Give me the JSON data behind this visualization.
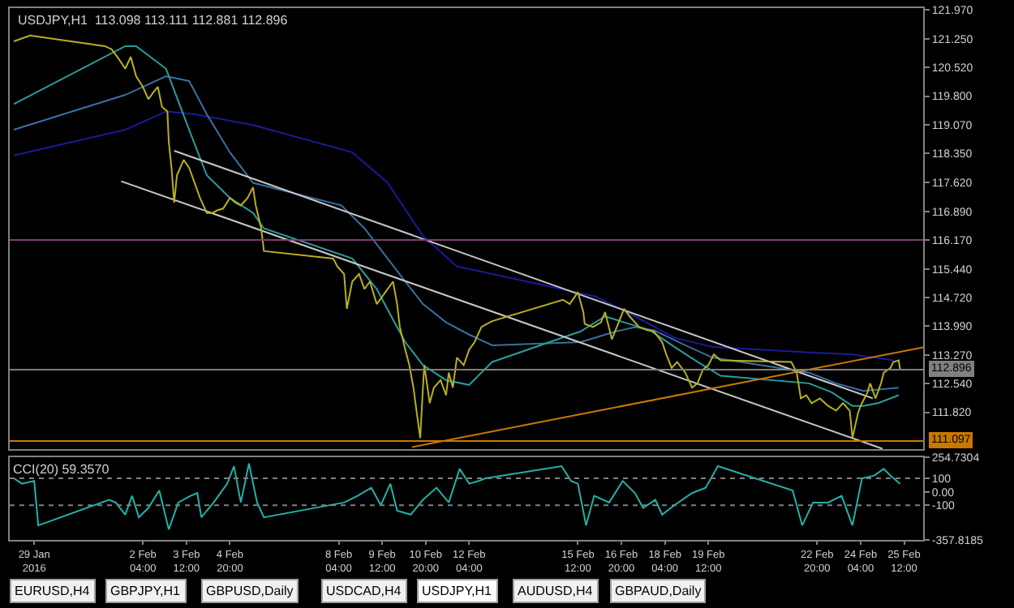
{
  "chart_data": [
    {
      "type": "line",
      "title": "USDJPY,H1  113.098 113.111 112.881 112.896",
      "xlim": [
        "2016-01-29T02:00",
        "2016-02-26T02:00"
      ],
      "ylim": [
        110.88,
        122.02
      ],
      "yticks": [
        {
          "value": 121.97,
          "label": "121.970"
        },
        {
          "value": 121.25,
          "label": "121.250"
        },
        {
          "value": 120.52,
          "label": "120.520"
        },
        {
          "value": 119.8,
          "label": "119.800"
        },
        {
          "value": 119.07,
          "label": "119.070"
        },
        {
          "value": 118.35,
          "label": "118.350"
        },
        {
          "value": 117.62,
          "label": "117.620"
        },
        {
          "value": 116.89,
          "label": "116.890"
        },
        {
          "value": 116.17,
          "label": "116.170"
        },
        {
          "value": 115.44,
          "label": "115.440"
        },
        {
          "value": 114.72,
          "label": "114.720"
        },
        {
          "value": 113.99,
          "label": "113.990"
        },
        {
          "value": 113.27,
          "label": "113.270"
        },
        {
          "value": 112.54,
          "label": "112.540"
        },
        {
          "value": 111.82,
          "label": "111.820"
        }
      ],
      "tick_labels": "y",
      "grid": false,
      "marker": "none",
      "line_style": "solid",
      "ref_lines": [
        {
          "axis": "y",
          "value": 116.17,
          "color": "#7f3f6f"
        },
        {
          "axis": "y",
          "value": 112.896,
          "label": "112.896",
          "color": "#808080"
        },
        {
          "axis": "y",
          "value": 111.097,
          "label": "111.097",
          "color": "#c87800"
        }
      ],
      "series": [
        {
          "color": "#1a1a9a",
          "x": [
            "2016-01-29T05:00",
            "2016-02-01T15:00",
            "2016-02-02T21:00",
            "2016-02-03T18:00",
            "2016-02-05T13:00",
            "2016-02-08T14:00",
            "2016-02-09T16:00",
            "2016-02-10T18:00",
            "2016-02-11T19:00",
            "2016-02-12T21:00",
            "2016-02-16T01:00",
            "2016-02-17T06:00",
            "2016-02-18T11:00",
            "2016-02-19T15:00",
            "2016-02-22T20:00",
            "2016-02-23T22:00",
            "2016-02-25T04:00"
          ],
          "values": [
            118.3,
            118.95,
            119.41,
            119.34,
            119.07,
            118.38,
            117.61,
            116.27,
            115.5,
            115.31,
            114.74,
            114.24,
            113.7,
            113.47,
            113.32,
            113.28,
            113.13
          ]
        },
        {
          "color": "#3a6fa0",
          "x": [
            "2016-01-29T05:00",
            "2016-02-01T15:00",
            "2016-02-02T21:00",
            "2016-02-03T14:00",
            "2016-02-04T03:00",
            "2016-02-04T20:00",
            "2016-02-05T13:00",
            "2016-02-08T06:00",
            "2016-02-08T23:00",
            "2016-02-09T16:00",
            "2016-02-10T05:00",
            "2016-02-10T18:00",
            "2016-02-11T11:00",
            "2016-02-12T04:00",
            "2016-02-12T21:00",
            "2016-02-15T14:00",
            "2016-02-16T16:00",
            "2016-02-17T06:00",
            "2016-02-17T20:00",
            "2016-02-18T19:00",
            "2016-02-19T15:00",
            "2016-02-22T14:00",
            "2016-02-23T10:00",
            "2016-02-24T06:00",
            "2016-02-25T08:00"
          ],
          "values": [
            118.95,
            119.83,
            120.3,
            120.18,
            119.34,
            118.38,
            117.61,
            117.04,
            116.46,
            115.7,
            115.12,
            114.55,
            114.09,
            113.78,
            113.51,
            113.59,
            113.86,
            113.97,
            113.89,
            113.51,
            113.2,
            112.82,
            112.55,
            112.36,
            112.44
          ]
        },
        {
          "color": "#2a9d9d",
          "x": [
            "2016-01-29T05:00",
            "2016-02-01T15:00",
            "2016-02-01T23:00",
            "2016-02-02T21:00",
            "2016-02-03T14:00",
            "2016-02-04T03:00",
            "2016-02-04T20:00",
            "2016-02-05T13:00",
            "2016-02-05T21:00",
            "2016-02-08T14:00",
            "2016-02-09T08:00",
            "2016-02-09T20:00",
            "2016-02-10T05:00",
            "2016-02-10T18:00",
            "2016-02-11T11:00",
            "2016-02-12T04:00",
            "2016-02-12T13:00",
            "2016-02-12T21:00",
            "2016-02-15T14:00",
            "2016-02-16T08:00",
            "2016-02-16T22:00",
            "2016-02-17T17:00",
            "2016-02-18T11:00",
            "2016-02-19T04:00",
            "2016-02-19T21:00",
            "2016-02-22T14:00",
            "2016-02-23T07:00",
            "2016-02-23T22:00",
            "2016-02-24T06:00",
            "2016-02-24T17:00",
            "2016-02-25T08:00"
          ],
          "values": [
            119.6,
            121.06,
            121.06,
            120.49,
            118.95,
            117.8,
            117.23,
            116.85,
            116.46,
            115.7,
            114.93,
            114.16,
            113.59,
            113.01,
            112.63,
            112.51,
            112.82,
            113.09,
            113.86,
            114.24,
            114.09,
            113.89,
            113.47,
            113.09,
            112.74,
            112.55,
            112.32,
            111.98,
            111.98,
            112.05,
            112.25
          ]
        },
        {
          "color": "#c8c8c8",
          "x": [
            "2016-02-03T03:00",
            "2016-02-24T13:00"
          ],
          "values": [
            118.42,
            112.17
          ]
        },
        {
          "color": "#c8c8c8",
          "x": [
            "2016-02-01T12:00",
            "2016-02-24T20:00"
          ],
          "values": [
            117.65,
            110.9
          ]
        },
        {
          "color": "#c87800",
          "x": [
            "2016-02-10T10:00",
            "2016-02-26T02:00"
          ],
          "values": [
            110.94,
            113.46
          ]
        },
        {
          "color": "#b8b020",
          "x": [
            "2016-01-29T05:00",
            "2016-01-29T17:00",
            "2016-02-01T00:00",
            "2016-02-01T05:00",
            "2016-02-01T10:00",
            "2016-02-01T15:00",
            "2016-02-01T19:00",
            "2016-02-01T23:00",
            "2016-02-02T04:00",
            "2016-02-02T08:00",
            "2016-02-02T12:00",
            "2016-02-02T15:00",
            "2016-02-02T18:00",
            "2016-02-02T22:00",
            "2016-02-02T23:00",
            "2016-02-03T01:00",
            "2016-02-03T03:00",
            "2016-02-03T05:00",
            "2016-02-03T10:00",
            "2016-02-03T14:00",
            "2016-02-03T18:00",
            "2016-02-03T22:00",
            "2016-02-04T03:00",
            "2016-02-04T07:00",
            "2016-02-04T11:00",
            "2016-02-04T15:00",
            "2016-02-04T20:00",
            "2016-02-05T00:00",
            "2016-02-05T04:00",
            "2016-02-05T09:00",
            "2016-02-05T13:00",
            "2016-02-05T15:00",
            "2016-02-05T19:00",
            "2016-02-05T21:00",
            "2016-02-08T00:00",
            "2016-02-08T03:00",
            "2016-02-08T08:00",
            "2016-02-08T10:00",
            "2016-02-08T14:00",
            "2016-02-08T19:00",
            "2016-02-08T23:00",
            "2016-02-09T03:00",
            "2016-02-09T08:00",
            "2016-02-09T12:00",
            "2016-02-09T16:00",
            "2016-02-09T20:00",
            "2016-02-09T23:00",
            "2016-02-10T01:00",
            "2016-02-10T05:00",
            "2016-02-10T08:00",
            "2016-02-10T11:00",
            "2016-02-10T14:00",
            "2016-02-10T16:00",
            "2016-02-10T18:00",
            "2016-02-10T19:00",
            "2016-02-10T23:00",
            "2016-02-11T02:00",
            "2016-02-11T07:00",
            "2016-02-11T11:00",
            "2016-02-11T13:00",
            "2016-02-11T16:00",
            "2016-02-11T19:00",
            "2016-02-12T00:00",
            "2016-02-12T04:00",
            "2016-02-12T08:00",
            "2016-02-12T13:00",
            "2016-02-12T17:00",
            "2016-02-12T21:00",
            "2016-02-15T01:00",
            "2016-02-15T06:00",
            "2016-02-15T12:00",
            "2016-02-15T16:00",
            "2016-02-15T17:00",
            "2016-02-15T23:00",
            "2016-02-16T05:00",
            "2016-02-16T08:00",
            "2016-02-16T13:00",
            "2016-02-16T18:00",
            "2016-02-16T22:00",
            "2016-02-17T02:00",
            "2016-02-17T06:00",
            "2016-02-17T09:00",
            "2016-02-17T15:00",
            "2016-02-17T20:00",
            "2016-02-18T02:00",
            "2016-02-18T05:00",
            "2016-02-18T09:00",
            "2016-02-18T13:00",
            "2016-02-18T19:00",
            "2016-02-19T00:00",
            "2016-02-19T04:00",
            "2016-02-19T08:00",
            "2016-02-19T12:00",
            "2016-02-19T16:00",
            "2016-02-19T21:00",
            "2016-02-22T01:00",
            "2016-02-22T05:00",
            "2016-02-22T08:00",
            "2016-02-22T12:00",
            "2016-02-22T16:00",
            "2016-02-22T22:00",
            "2016-02-23T04:00",
            "2016-02-23T10:00",
            "2016-02-23T15:00",
            "2016-02-23T20:00",
            "2016-02-23T22:00",
            "2016-02-24T02:00",
            "2016-02-24T04:00",
            "2016-02-24T09:00",
            "2016-02-24T11:00",
            "2016-02-24T15:00",
            "2016-02-24T19:00",
            "2016-02-24T21:00",
            "2016-02-25T02:00",
            "2016-02-25T04:00",
            "2016-02-25T08:00",
            "2016-02-25T09:00"
          ],
          "values": [
            121.18,
            121.33,
            121.06,
            120.98,
            120.75,
            120.49,
            120.79,
            120.3,
            120.03,
            119.72,
            119.91,
            120.03,
            119.53,
            119.41,
            118.65,
            117.99,
            117.11,
            117.8,
            118.19,
            117.99,
            117.61,
            117.23,
            116.85,
            116.85,
            116.92,
            116.96,
            117.23,
            117.11,
            117.04,
            117.23,
            117.5,
            117.04,
            116.46,
            115.89,
            115.7,
            115.5,
            115.31,
            114.43,
            115.12,
            115.31,
            114.93,
            115.12,
            114.55,
            114.74,
            114.93,
            115.12,
            114.55,
            113.97,
            113.4,
            113.01,
            112.44,
            111.67,
            111.17,
            112.44,
            113.01,
            112.05,
            112.44,
            112.63,
            112.25,
            112.82,
            112.44,
            113.2,
            113.01,
            113.4,
            113.59,
            113.97,
            114.05,
            114.12,
            114.66,
            114.55,
            114.85,
            114.35,
            114.05,
            113.97,
            114.09,
            114.35,
            113.66,
            114.09,
            114.43,
            114.24,
            114.09,
            113.97,
            113.89,
            113.86,
            113.59,
            113.28,
            112.94,
            113.09,
            112.82,
            112.44,
            112.55,
            112.9,
            113.01,
            113.28,
            113.13,
            113.09,
            112.82,
            112.17,
            112.25,
            112.05,
            112.17,
            111.98,
            111.86,
            112.05,
            111.86,
            111.17,
            111.79,
            111.98,
            112.32,
            112.55,
            112.17,
            112.55,
            112.82,
            112.94,
            113.09,
            113.13,
            112.9
          ]
        }
      ]
    },
    {
      "type": "line",
      "xlim": [
        "2016-01-29T02:00",
        "2016-02-26T02:00"
      ],
      "ylim": [
        -357.8185,
        254.7304
      ],
      "xticks": [
        {
          "value": "2016-01-29T20:00",
          "label": "29 Jan 2016"
        },
        {
          "value": "2016-02-02T04:00",
          "label": "2 Feb 04:00"
        },
        {
          "value": "2016-02-03T12:00",
          "label": "3 Feb 12:00"
        },
        {
          "value": "2016-02-04T20:00",
          "label": "4 Feb 20:00"
        },
        {
          "value": "2016-02-08T04:00",
          "label": "8 Feb 04:00"
        },
        {
          "value": "2016-02-09T12:00",
          "label": "9 Feb 12:00"
        },
        {
          "value": "2016-02-10T20:00",
          "label": "10 Feb 20:00"
        },
        {
          "value": "2016-02-12T04:00",
          "label": "12 Feb 04:00"
        },
        {
          "value": "2016-02-15T12:00",
          "label": "15 Feb 12:00"
        },
        {
          "value": "2016-02-16T20:00",
          "label": "16 Feb 20:00"
        },
        {
          "value": "2016-02-18T04:00",
          "label": "18 Feb 04:00"
        },
        {
          "value": "2016-02-19T12:00",
          "label": "19 Feb 12:00"
        },
        {
          "value": "2016-02-22T20:00",
          "label": "22 Feb 20:00"
        },
        {
          "value": "2016-02-24T04:00",
          "label": "24 Feb 04:00"
        },
        {
          "value": "2016-02-25T12:00",
          "label": "25 Feb 12:00"
        }
      ],
      "yticks": [
        {
          "value": 254.7304,
          "label": "254.7304"
        },
        100,
        {
          "value": 0,
          "label": "0.00"
        },
        -100,
        {
          "value": -357.8185,
          "label": "-357.8185"
        }
      ],
      "grid": false,
      "marker": "none",
      "line_style": "solid",
      "ref_lines": [
        {
          "axis": "y",
          "value": 100,
          "color": "#808080",
          "line_style": "dotted"
        },
        {
          "axis": "y",
          "value": -100,
          "color": "#808080",
          "line_style": "dotted"
        }
      ],
      "annotations": [
        "EURUSD,H4",
        "GBPJPY,H1",
        "GBPUSD,Daily",
        "USDCAD,H4",
        "USDJPY,H1",
        "AUDUSD,H4",
        "GBPAUD,Daily"
      ],
      "series": [
        {
          "name": "CCI(20) 59.3570",
          "color": "#20b2aa",
          "x": [
            "2016-01-29T05:00",
            "2016-01-29T11:00",
            "2016-01-29T20:00",
            "2016-01-29T23:00",
            "2016-02-01T03:00",
            "2016-02-01T08:00",
            "2016-02-01T15:00",
            "2016-02-01T20:00",
            "2016-02-02T01:00",
            "2016-02-02T08:00",
            "2016-02-02T16:00",
            "2016-02-02T23:00",
            "2016-02-03T06:00",
            "2016-02-03T15:00",
            "2016-02-03T20:00",
            "2016-02-03T23:00",
            "2016-02-04T08:00",
            "2016-02-04T18:00",
            "2016-02-04T23:00",
            "2016-02-05T04:00",
            "2016-02-05T10:00",
            "2016-02-05T16:00",
            "2016-02-05T21:00",
            "2016-02-08T08:00",
            "2016-02-08T18:00",
            "2016-02-09T04:00",
            "2016-02-09T11:00",
            "2016-02-09T18:00",
            "2016-02-09T23:00",
            "2016-02-10T09:00",
            "2016-02-10T18:00",
            "2016-02-11T04:00",
            "2016-02-11T13:00",
            "2016-02-11T21:00",
            "2016-02-12T04:00",
            "2016-02-12T11:00",
            "2016-02-12T16:00",
            "2016-02-15T00:00",
            "2016-02-15T07:00",
            "2016-02-15T12:00",
            "2016-02-15T18:00",
            "2016-02-16T00:00",
            "2016-02-16T11:00",
            "2016-02-16T21:00",
            "2016-02-17T06:00",
            "2016-02-17T12:00",
            "2016-02-17T21:00",
            "2016-02-18T02:00",
            "2016-02-18T11:00",
            "2016-02-19T00:00",
            "2016-02-19T10:00",
            "2016-02-19T19:00",
            "2016-02-22T02:00",
            "2016-02-22T09:00",
            "2016-02-22T17:00",
            "2016-02-23T04:00",
            "2016-02-23T14:00",
            "2016-02-23T22:00",
            "2016-02-24T05:00",
            "2016-02-24T14:00",
            "2016-02-24T21:00",
            "2016-02-25T02:00",
            "2016-02-25T09:00"
          ],
          "values": [
            100,
            60,
            80,
            -250,
            -60,
            -80,
            -170,
            -30,
            -190,
            -120,
            10,
            -280,
            -80,
            -30,
            -10,
            -190,
            -80,
            60,
            190,
            -80,
            210,
            -80,
            -190,
            -80,
            -30,
            30,
            -100,
            60,
            -140,
            -170,
            -60,
            30,
            -80,
            170,
            60,
            80,
            100,
            190,
            80,
            60,
            -250,
            -30,
            -80,
            80,
            -10,
            -120,
            -60,
            -170,
            -100,
            -10,
            30,
            190,
            10,
            -250,
            -80,
            -80,
            -30,
            -250,
            100,
            120,
            170,
            120,
            60
          ]
        }
      ]
    }
  ]
}
